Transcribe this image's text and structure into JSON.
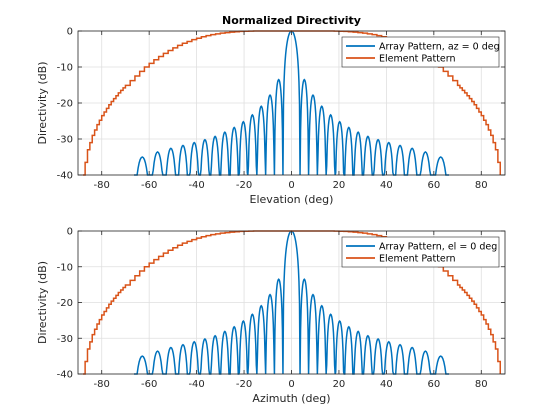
{
  "chart_data": [
    {
      "type": "line",
      "title": "Normalized Directivity",
      "xlabel": "Elevation (deg)",
      "ylabel": "Directivity (dB)",
      "xlim": [
        -90,
        90
      ],
      "ylim": [
        -40,
        0
      ],
      "xticks": [
        -80,
        -60,
        -40,
        -20,
        0,
        20,
        40,
        60,
        80
      ],
      "yticks": [
        0,
        -10,
        -20,
        -30,
        -40
      ],
      "grid": true,
      "legend_position": "top-right",
      "series": [
        {
          "name": "Array Pattern, az = 0 deg",
          "color": "#0072BD",
          "style": "sinc-like lobes",
          "main_lobe_null_deg": 3.6,
          "lobe_nulls_deg": [
            3.6,
            7.2,
            10.9,
            14.6,
            18.4,
            22.2,
            26.1,
            30.1,
            34.3,
            38.7,
            43.3,
            48.2,
            53.5,
            59.4,
            66.4
          ],
          "sidelobe_peaks_db": [
            -13.5,
            -17.8,
            -20.9,
            -23.3,
            -25.2,
            -26.8,
            -28.1,
            -29.3,
            -30.2,
            -31.0,
            -31.8,
            -32.6,
            -33.6,
            -35.0
          ],
          "x_extent": [
            -68,
            68
          ]
        },
        {
          "name": "Element Pattern",
          "color": "#D95319",
          "x": [
            -88,
            -87,
            -86,
            -85,
            -84,
            -83,
            -82,
            -81,
            -80,
            -79,
            -78,
            -77,
            -76,
            -75,
            -74,
            -73,
            -72,
            -71,
            -70,
            -68,
            -66,
            -64,
            -62,
            -60,
            -58,
            -56,
            -54,
            -52,
            -50,
            -48,
            -46,
            -44,
            -42,
            -40,
            -38,
            -36,
            -34,
            -32,
            -30,
            -28,
            -26,
            -24,
            -22,
            -20,
            -18,
            -16,
            -14,
            -12,
            -10,
            -8,
            -6,
            -4,
            -2,
            0,
            2,
            4,
            6,
            8,
            10,
            12,
            14,
            16,
            18,
            20,
            22,
            24,
            26,
            28,
            30,
            32,
            34,
            36,
            38,
            40,
            42,
            44,
            46,
            48,
            50,
            52,
            54,
            56,
            58,
            60,
            62,
            64,
            66,
            68,
            70,
            71,
            72,
            73,
            74,
            75,
            76,
            77,
            78,
            79,
            80,
            81,
            82,
            83,
            84,
            85,
            86,
            87,
            88
          ],
          "y": [
            -40,
            -36.5,
            -33,
            -31,
            -29,
            -27.5,
            -26,
            -24.8,
            -23.5,
            -22.5,
            -21.5,
            -20.5,
            -19.6,
            -18.8,
            -18,
            -17.2,
            -16.5,
            -15.8,
            -15.1,
            -13.8,
            -12.5,
            -11.2,
            -10,
            -9,
            -8,
            -7.1,
            -6.2,
            -5.4,
            -4.7,
            -4,
            -3.4,
            -2.9,
            -2.4,
            -2,
            -1.6,
            -1.3,
            -1,
            -0.8,
            -0.6,
            -0.45,
            -0.3,
            -0.2,
            -0.12,
            -0.06,
            -0.02,
            0,
            0,
            0,
            0,
            0,
            0,
            0,
            0,
            0,
            0,
            0,
            0,
            0,
            0,
            0,
            0,
            0,
            -0.02,
            -0.06,
            -0.12,
            -0.2,
            -0.3,
            -0.45,
            -0.6,
            -0.8,
            -1,
            -1.3,
            -1.6,
            -2,
            -2.4,
            -2.9,
            -3.4,
            -4,
            -4.7,
            -5.4,
            -6.2,
            -7.1,
            -8,
            -9,
            -10,
            -11.2,
            -12.5,
            -13.8,
            -15.1,
            -15.8,
            -16.5,
            -17.2,
            -18,
            -18.8,
            -19.6,
            -20.5,
            -21.5,
            -22.5,
            -23.5,
            -24.8,
            -26,
            -27.5,
            -29,
            -31,
            -33,
            -36.5,
            -40
          ]
        }
      ]
    },
    {
      "type": "line",
      "title": "",
      "xlabel": "Azimuth (deg)",
      "ylabel": "Directivity (dB)",
      "xlim": [
        -90,
        90
      ],
      "ylim": [
        -40,
        0
      ],
      "xticks": [
        -80,
        -60,
        -40,
        -20,
        0,
        20,
        40,
        60,
        80
      ],
      "yticks": [
        0,
        -10,
        -20,
        -30,
        -40
      ],
      "grid": true,
      "legend_position": "top-right",
      "series": [
        {
          "name": "Array Pattern, el = 0 deg",
          "color": "#0072BD",
          "style": "sinc-like lobes",
          "main_lobe_null_deg": 3.6,
          "lobe_nulls_deg": [
            3.6,
            7.2,
            10.9,
            14.6,
            18.4,
            22.2,
            26.1,
            30.1,
            34.3,
            38.7,
            43.3,
            48.2,
            53.5,
            59.4,
            66.4
          ],
          "sidelobe_peaks_db": [
            -13.5,
            -17.8,
            -20.9,
            -23.3,
            -25.2,
            -26.8,
            -28.1,
            -29.3,
            -30.2,
            -31.0,
            -31.8,
            -32.6,
            -33.6,
            -35.0
          ],
          "x_extent": [
            -68,
            68
          ]
        },
        {
          "name": "Element Pattern",
          "color": "#D95319",
          "x": [
            -88,
            -87,
            -86,
            -85,
            -84,
            -83,
            -82,
            -81,
            -80,
            -79,
            -78,
            -77,
            -76,
            -75,
            -74,
            -73,
            -72,
            -71,
            -70,
            -68,
            -66,
            -64,
            -62,
            -60,
            -58,
            -56,
            -54,
            -52,
            -50,
            -48,
            -46,
            -44,
            -42,
            -40,
            -38,
            -36,
            -34,
            -32,
            -30,
            -28,
            -26,
            -24,
            -22,
            -20,
            -18,
            -16,
            -14,
            -12,
            -10,
            -8,
            -6,
            -4,
            -2,
            0,
            2,
            4,
            6,
            8,
            10,
            12,
            14,
            16,
            18,
            20,
            22,
            24,
            26,
            28,
            30,
            32,
            34,
            36,
            38,
            40,
            42,
            44,
            46,
            48,
            50,
            52,
            54,
            56,
            58,
            60,
            62,
            64,
            66,
            68,
            70,
            71,
            72,
            73,
            74,
            75,
            76,
            77,
            78,
            79,
            80,
            81,
            82,
            83,
            84,
            85,
            86,
            87,
            88
          ],
          "y": [
            -40,
            -36.5,
            -33,
            -31,
            -29,
            -27.5,
            -26,
            -24.8,
            -23.5,
            -22.5,
            -21.5,
            -20.5,
            -19.6,
            -18.8,
            -18,
            -17.2,
            -16.5,
            -15.8,
            -15.1,
            -13.8,
            -12.5,
            -11.2,
            -10,
            -9,
            -8,
            -7.1,
            -6.2,
            -5.4,
            -4.7,
            -4,
            -3.4,
            -2.9,
            -2.4,
            -2,
            -1.6,
            -1.3,
            -1,
            -0.8,
            -0.6,
            -0.45,
            -0.3,
            -0.2,
            -0.12,
            -0.06,
            -0.02,
            0,
            0,
            0,
            0,
            0,
            0,
            0,
            0,
            0,
            0,
            0,
            0,
            0,
            0,
            0,
            0,
            0,
            -0.02,
            -0.06,
            -0.12,
            -0.2,
            -0.3,
            -0.45,
            -0.6,
            -0.8,
            -1,
            -1.3,
            -1.6,
            -2,
            -2.4,
            -2.9,
            -3.4,
            -4,
            -4.7,
            -5.4,
            -6.2,
            -7.1,
            -8,
            -9,
            -10,
            -11.2,
            -12.5,
            -13.8,
            -15.1,
            -15.8,
            -16.5,
            -17.2,
            -18,
            -18.8,
            -19.6,
            -20.5,
            -21.5,
            -22.5,
            -23.5,
            -24.8,
            -26,
            -27.5,
            -29,
            -31,
            -33,
            -36.5,
            -40
          ]
        }
      ]
    }
  ]
}
